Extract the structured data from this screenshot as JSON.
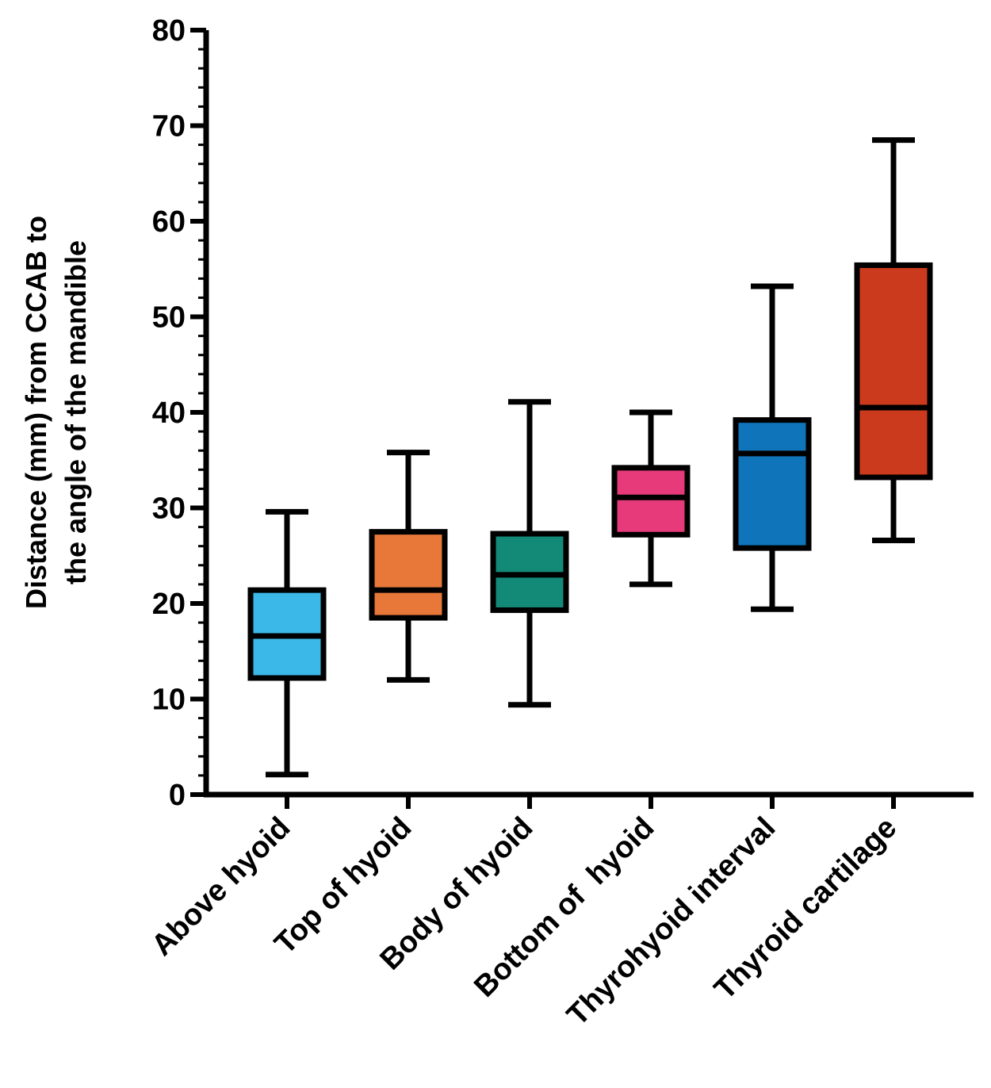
{
  "chart_data": {
    "type": "box",
    "ylabel_lines": [
      "Distance (mm) from CCAB to",
      "the angle of the mandible"
    ],
    "xlabel": "",
    "ylim": [
      0,
      80
    ],
    "yticks": [
      0,
      10,
      20,
      30,
      40,
      50,
      60,
      70,
      80
    ],
    "grid": false,
    "categories": [
      "Above hyoid",
      "Top of hyoid",
      "Body of hyoid",
      "Bottom of  hyoid",
      "Thyrohyoid interval",
      "Thyroid cartilage"
    ],
    "boxes": [
      {
        "category": "Above hyoid",
        "min": 2.1,
        "q1": 12.2,
        "median": 16.6,
        "q3": 21.4,
        "max": 29.6,
        "color": "#3BB8E8"
      },
      {
        "category": "Top of hyoid",
        "min": 12.0,
        "q1": 18.5,
        "median": 21.4,
        "q3": 27.5,
        "max": 35.8,
        "color": "#E8783A"
      },
      {
        "category": "Body of hyoid",
        "min": 9.4,
        "q1": 19.3,
        "median": 23.0,
        "q3": 27.3,
        "max": 41.1,
        "color": "#138A78"
      },
      {
        "category": "Bottom of  hyoid",
        "min": 22.0,
        "q1": 27.2,
        "median": 31.1,
        "q3": 34.2,
        "max": 40.0,
        "color": "#E63A7A"
      },
      {
        "category": "Thyrohyoid interval",
        "min": 19.4,
        "q1": 25.8,
        "median": 35.7,
        "q3": 39.2,
        "max": 53.2,
        "color": "#0F74BA"
      },
      {
        "category": "Thyroid cartilage",
        "min": 26.6,
        "q1": 33.2,
        "median": 40.5,
        "q3": 55.4,
        "max": 68.5,
        "color": "#CC3A1E"
      }
    ]
  }
}
